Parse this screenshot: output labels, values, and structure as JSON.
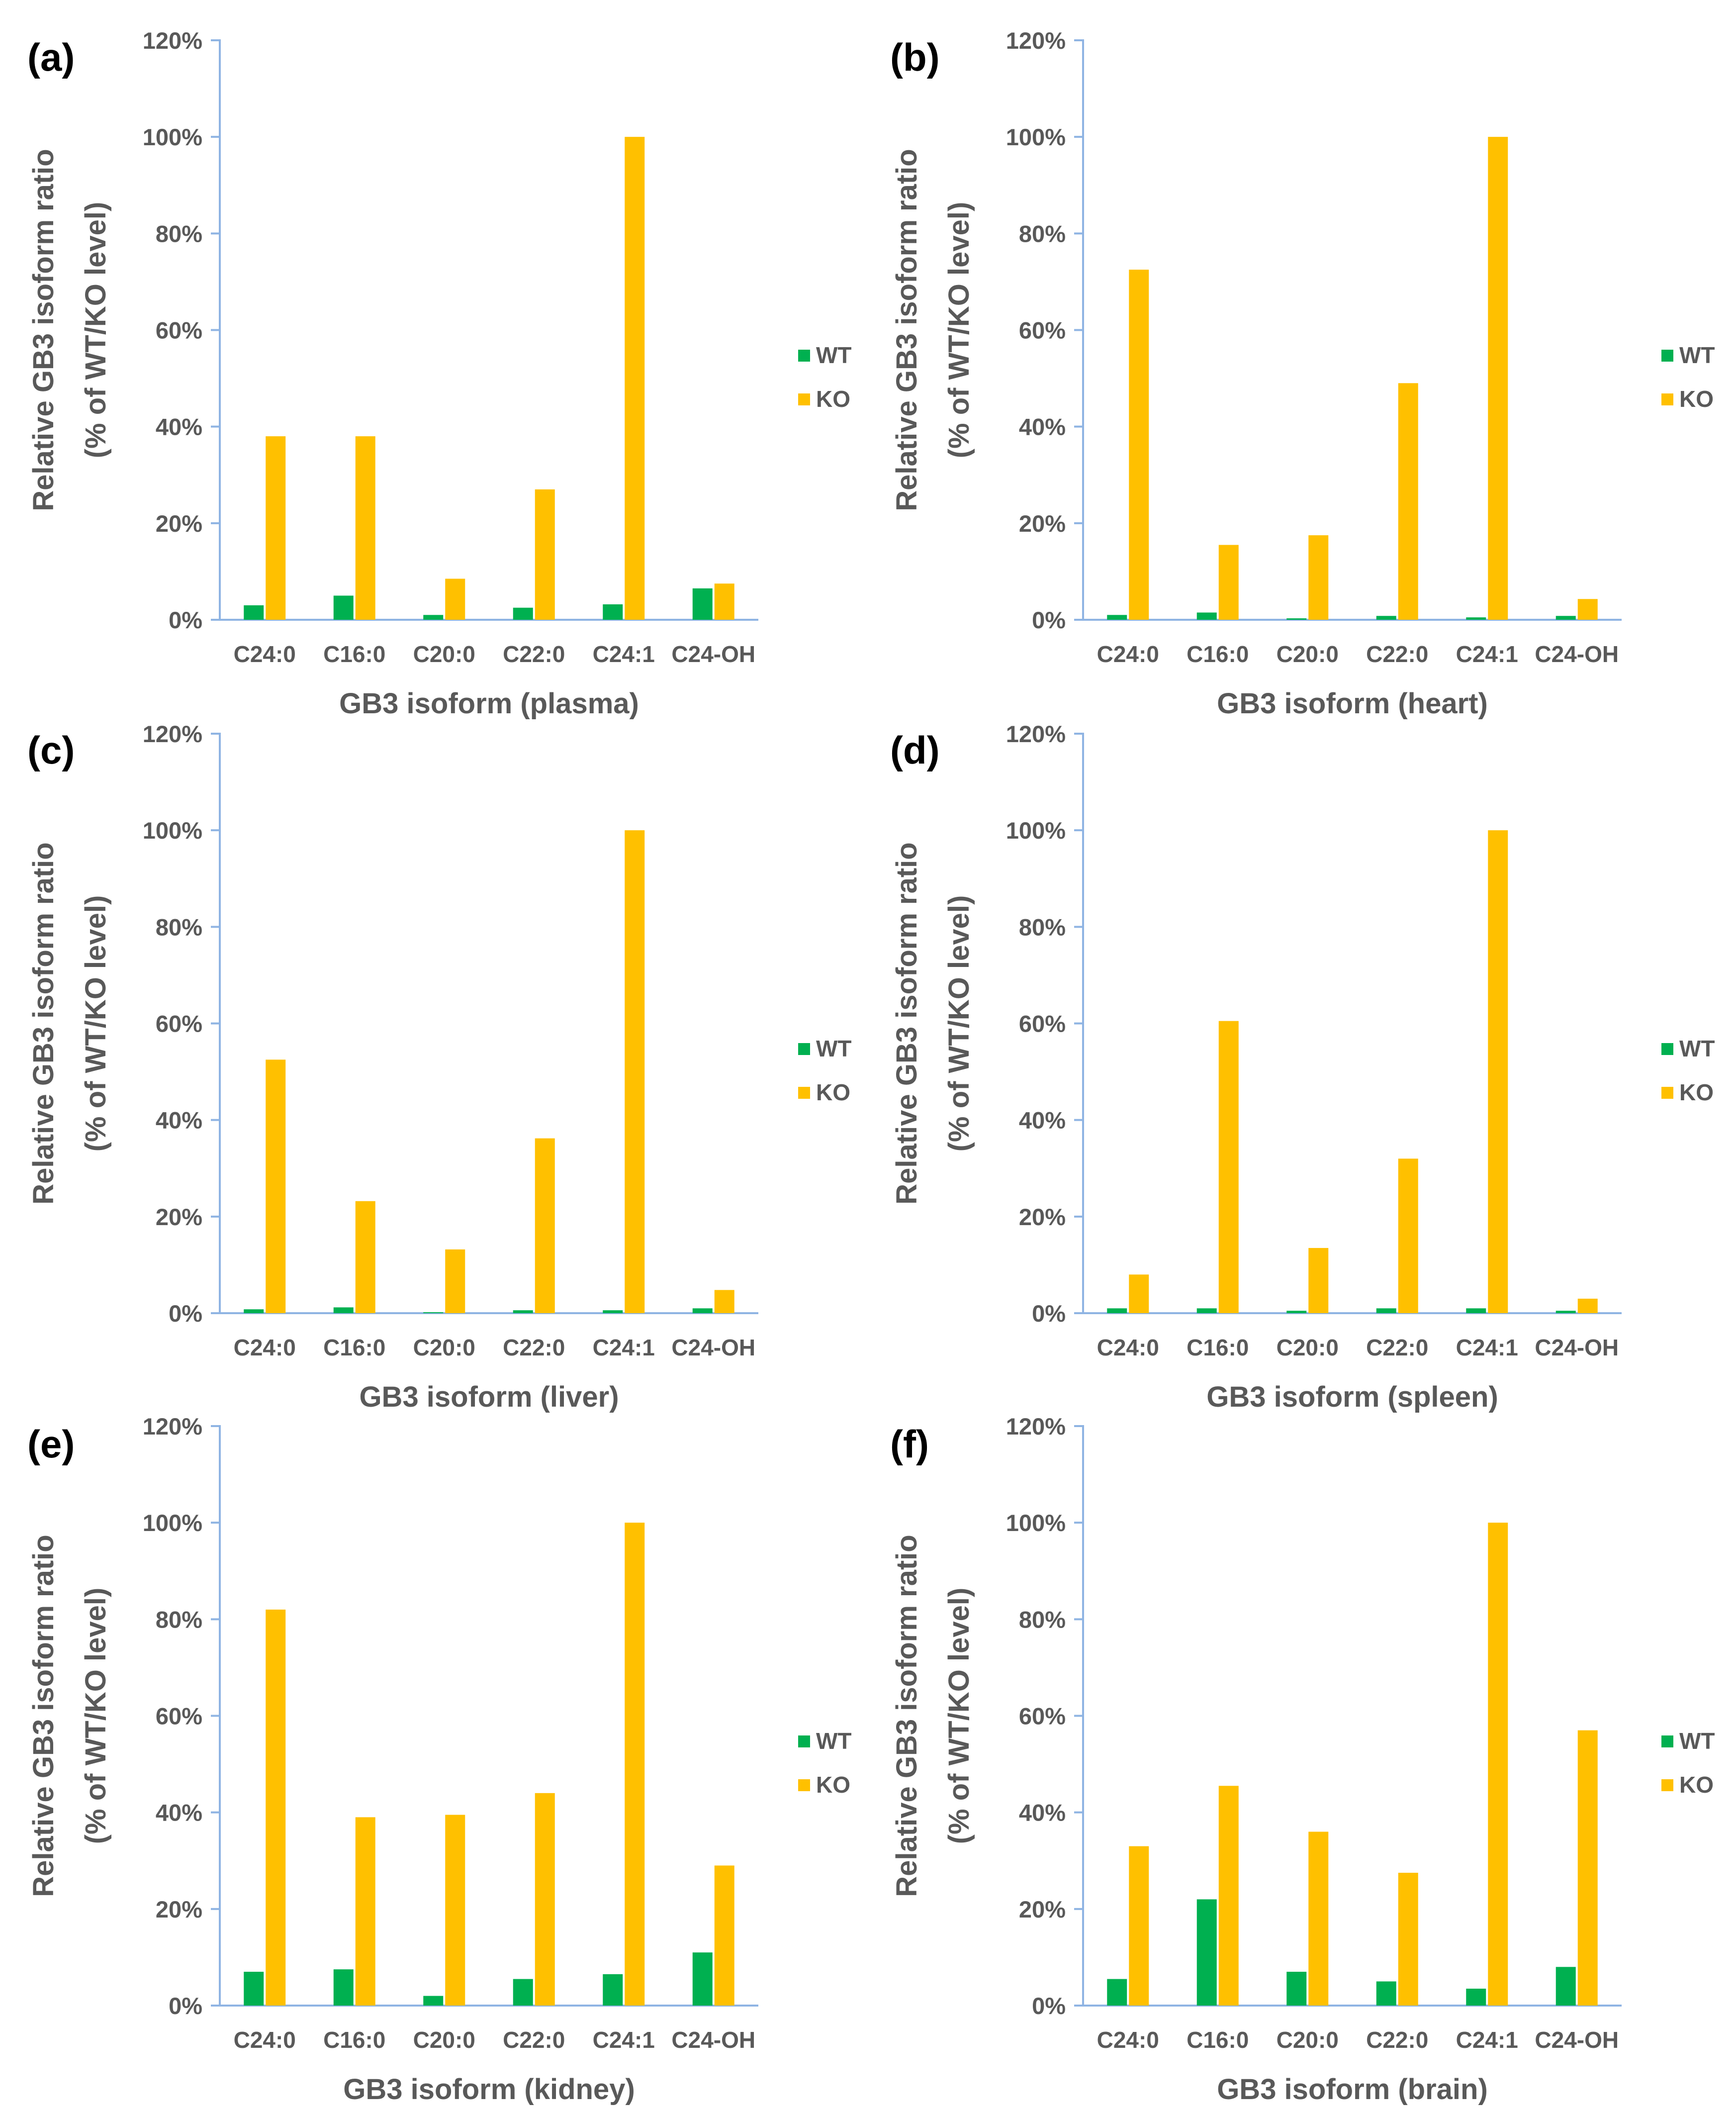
{
  "figure": {
    "colors": {
      "wt": "#00B050",
      "ko": "#FFC000",
      "axis": "#8FB4E3",
      "text": "#595959",
      "letter": "#000000"
    },
    "common": {
      "categories": [
        "C24:0",
        "C16:0",
        "C20:0",
        "C22:0",
        "C24:1",
        "C24-OH"
      ],
      "ylabel_line1": "Relative GB3 isoform ratio",
      "ylabel_line2": "(% of WT/KO level)",
      "yticks": [
        "0%",
        "20%",
        "40%",
        "60%",
        "80%",
        "100%",
        "120%"
      ],
      "ylim": [
        0,
        120
      ],
      "legend": [
        "WT",
        "KO"
      ]
    }
  },
  "chart_data": [
    {
      "type": "bar",
      "panel": "(a)",
      "xlabel": "GB3 isoform (plasma)",
      "ylabel": "Relative GB3 isoform ratio (% of WT/KO level)",
      "categories": [
        "C24:0",
        "C16:0",
        "C20:0",
        "C22:0",
        "C24:1",
        "C24-OH"
      ],
      "ylim": [
        0,
        120
      ],
      "series": [
        {
          "name": "WT",
          "values": [
            3.0,
            5.0,
            1.0,
            2.5,
            3.2,
            6.5
          ]
        },
        {
          "name": "KO",
          "values": [
            38,
            38,
            8.5,
            27,
            100,
            7.5
          ]
        }
      ]
    },
    {
      "type": "bar",
      "panel": "(b)",
      "xlabel": "GB3 isoform (heart)",
      "ylabel": "Relative GB3 isoform ratio (% of WT/KO level)",
      "categories": [
        "C24:0",
        "C16:0",
        "C20:0",
        "C22:0",
        "C24:1",
        "C24-OH"
      ],
      "ylim": [
        0,
        120
      ],
      "series": [
        {
          "name": "WT",
          "values": [
            1.0,
            1.5,
            0.3,
            0.8,
            0.5,
            0.8
          ]
        },
        {
          "name": "KO",
          "values": [
            72.5,
            15.5,
            17.5,
            49,
            100,
            4.3
          ]
        }
      ]
    },
    {
      "type": "bar",
      "panel": "(c)",
      "xlabel": "GB3 isoform (liver)",
      "ylabel": "Relative GB3 isoform ratio (% of WT/KO level)",
      "categories": [
        "C24:0",
        "C16:0",
        "C20:0",
        "C22:0",
        "C24:1",
        "C24-OH"
      ],
      "ylim": [
        0,
        120
      ],
      "series": [
        {
          "name": "WT",
          "values": [
            0.8,
            1.2,
            0.2,
            0.6,
            0.6,
            1.0
          ]
        },
        {
          "name": "KO",
          "values": [
            52.5,
            23.2,
            13.2,
            36.2,
            100,
            4.8
          ]
        }
      ]
    },
    {
      "type": "bar",
      "panel": "(d)",
      "xlabel": "GB3 isoform (spleen)",
      "ylabel": "Relative GB3 isoform ratio (% of WT/KO level)",
      "categories": [
        "C24:0",
        "C16:0",
        "C20:0",
        "C22:0",
        "C24:1",
        "C24-OH"
      ],
      "ylim": [
        0,
        120
      ],
      "series": [
        {
          "name": "WT",
          "values": [
            1.0,
            1.0,
            0.5,
            1.0,
            1.0,
            0.5
          ]
        },
        {
          "name": "KO",
          "values": [
            8.0,
            60.5,
            13.5,
            32,
            100,
            3.0
          ]
        }
      ]
    },
    {
      "type": "bar",
      "panel": "(e)",
      "xlabel": "GB3 isoform (kidney)",
      "ylabel": "Relative GB3 isoform ratio (% of WT/KO level)",
      "categories": [
        "C24:0",
        "C16:0",
        "C20:0",
        "C22:0",
        "C24:1",
        "C24-OH"
      ],
      "ylim": [
        0,
        120
      ],
      "series": [
        {
          "name": "WT",
          "values": [
            7.0,
            7.5,
            2.0,
            5.5,
            6.5,
            11
          ]
        },
        {
          "name": "KO",
          "values": [
            82,
            39,
            39.5,
            44,
            100,
            29
          ]
        }
      ]
    },
    {
      "type": "bar",
      "panel": "(f)",
      "xlabel": "GB3 isoform (brain)",
      "ylabel": "Relative GB3 isoform ratio (% of WT/KO level)",
      "categories": [
        "C24:0",
        "C16:0",
        "C20:0",
        "C22:0",
        "C24:1",
        "C24-OH"
      ],
      "ylim": [
        0,
        120
      ],
      "series": [
        {
          "name": "WT",
          "values": [
            5.5,
            22,
            7.0,
            5.0,
            3.5,
            8.0
          ]
        },
        {
          "name": "KO",
          "values": [
            33,
            45.5,
            36,
            27.5,
            100,
            57
          ]
        }
      ]
    }
  ]
}
